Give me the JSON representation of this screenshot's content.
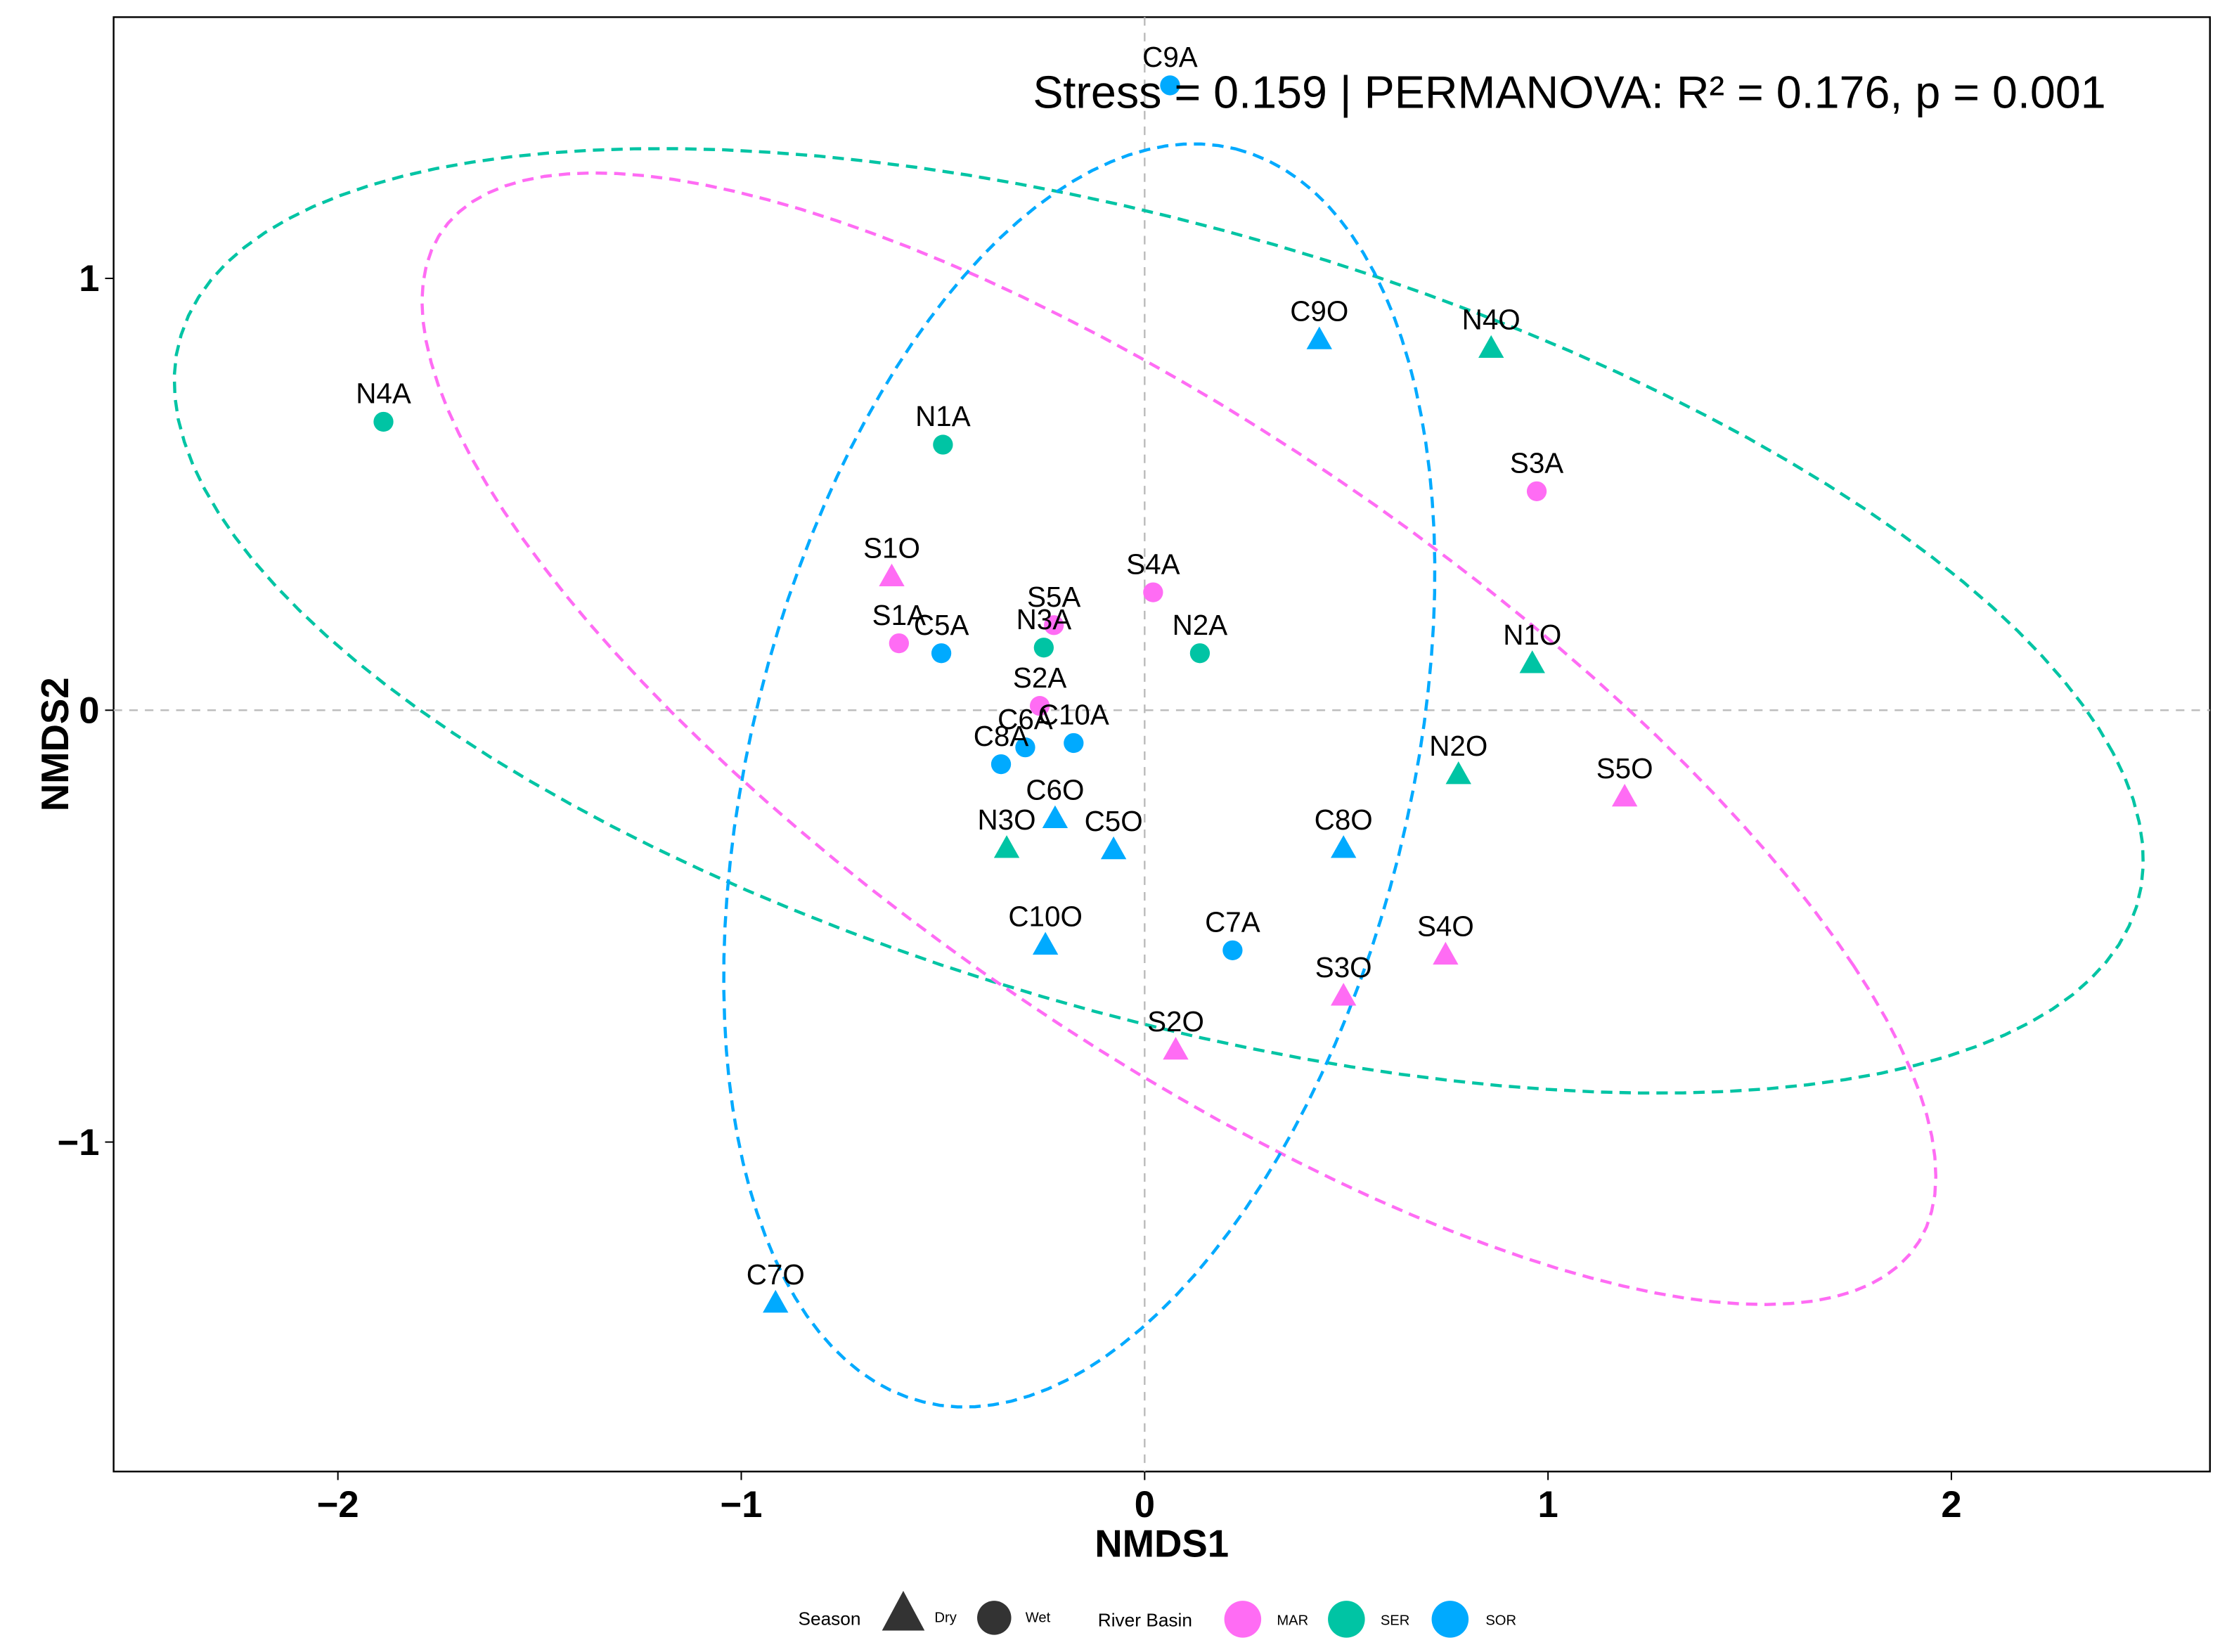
{
  "chart_data": {
    "type": "scatter",
    "title": "Stress = 0.159 | PERMANOVA: R² = 0.176, p = 0.001",
    "xlabel": "NMDS1",
    "ylabel": "NMDS2",
    "xlim": [
      -2.556,
      2.641
    ],
    "ylim": [
      -1.763,
      1.605
    ],
    "xticks": [
      -2,
      -1,
      0,
      1,
      2
    ],
    "xtick_labels": [
      "−2",
      "−1",
      "0",
      "1",
      "2"
    ],
    "yticks": [
      -1,
      0,
      1
    ],
    "ytick_labels": [
      "−1",
      "0",
      "1"
    ],
    "grid": false,
    "reference_lines": {
      "x": 0,
      "y": 0
    },
    "colors": {
      "MAR": "#FF6CF4",
      "SER": "#00C4A4",
      "SOR": "#00AAFF"
    },
    "points": [
      {
        "label": "N4A",
        "x": -1.887,
        "y": 0.668,
        "basin": "SER",
        "season": "Wet"
      },
      {
        "label": "N1A",
        "x": -0.5,
        "y": 0.615,
        "basin": "SER",
        "season": "Wet"
      },
      {
        "label": "S1O",
        "x": -0.627,
        "y": 0.31,
        "basin": "MAR",
        "season": "Dry"
      },
      {
        "label": "S1A",
        "x": -0.609,
        "y": 0.155,
        "basin": "MAR",
        "season": "Wet"
      },
      {
        "label": "C5A",
        "x": -0.504,
        "y": 0.132,
        "basin": "SOR",
        "season": "Wet"
      },
      {
        "label": "S5A",
        "x": -0.225,
        "y": 0.197,
        "basin": "MAR",
        "season": "Wet"
      },
      {
        "label": "N3A",
        "x": -0.25,
        "y": 0.145,
        "basin": "SER",
        "season": "Wet"
      },
      {
        "label": "S4A",
        "x": 0.021,
        "y": 0.273,
        "basin": "MAR",
        "season": "Wet"
      },
      {
        "label": "N2A",
        "x": 0.137,
        "y": 0.132,
        "basin": "SER",
        "season": "Wet"
      },
      {
        "label": "S2A",
        "x": -0.26,
        "y": 0.01,
        "basin": "MAR",
        "season": "Wet"
      },
      {
        "label": "C6A",
        "x": -0.296,
        "y": -0.086,
        "basin": "SOR",
        "season": "Wet"
      },
      {
        "label": "C10A",
        "x": -0.176,
        "y": -0.076,
        "basin": "SOR",
        "season": "Wet"
      },
      {
        "label": "C8A",
        "x": -0.356,
        "y": -0.125,
        "basin": "SOR",
        "season": "Wet"
      },
      {
        "label": "C6O",
        "x": -0.222,
        "y": -0.25,
        "basin": "SOR",
        "season": "Dry"
      },
      {
        "label": "N3O",
        "x": -0.342,
        "y": -0.319,
        "basin": "SER",
        "season": "Dry"
      },
      {
        "label": "C5O",
        "x": -0.077,
        "y": -0.322,
        "basin": "SOR",
        "season": "Dry"
      },
      {
        "label": "C10O",
        "x": -0.246,
        "y": -0.543,
        "basin": "SOR",
        "season": "Dry"
      },
      {
        "label": "C7A",
        "x": 0.218,
        "y": -0.556,
        "basin": "SOR",
        "season": "Wet"
      },
      {
        "label": "S2O",
        "x": 0.077,
        "y": -0.786,
        "basin": "MAR",
        "season": "Dry"
      },
      {
        "label": "S3O",
        "x": 0.493,
        "y": -0.661,
        "basin": "MAR",
        "season": "Dry"
      },
      {
        "label": "S4O",
        "x": 0.746,
        "y": -0.566,
        "basin": "MAR",
        "season": "Dry"
      },
      {
        "label": "C8O",
        "x": 0.493,
        "y": -0.319,
        "basin": "SOR",
        "season": "Dry"
      },
      {
        "label": "N2O",
        "x": 0.778,
        "y": -0.148,
        "basin": "SER",
        "season": "Dry"
      },
      {
        "label": "S5O",
        "x": 1.19,
        "y": -0.2,
        "basin": "MAR",
        "season": "Dry"
      },
      {
        "label": "N1O",
        "x": 0.961,
        "y": 0.109,
        "basin": "SER",
        "season": "Dry"
      },
      {
        "label": "S3A",
        "x": 0.972,
        "y": 0.507,
        "basin": "MAR",
        "season": "Wet"
      },
      {
        "label": "N4O",
        "x": 0.859,
        "y": 0.839,
        "basin": "SER",
        "season": "Dry"
      },
      {
        "label": "C9O",
        "x": 0.433,
        "y": 0.859,
        "basin": "SOR",
        "season": "Dry"
      },
      {
        "label": "C9A",
        "x": 0.063,
        "y": 1.447,
        "basin": "SOR",
        "season": "Wet"
      },
      {
        "label": "C7O",
        "x": -0.915,
        "y": -1.372,
        "basin": "SOR",
        "season": "Dry"
      }
    ],
    "ellipses": [
      {
        "basin": "SER",
        "center": [
          0.035,
          0.207
        ],
        "u": [
          2.366,
          -0.306
        ],
        "v": [
          -0.6,
          1.05
        ]
      },
      {
        "basin": "MAR",
        "center": [
          0.085,
          -0.066
        ],
        "u": [
          1.673,
          -0.526
        ],
        "v": [
          -0.85,
          1.2
        ]
      },
      {
        "basin": "SOR",
        "center": [
          -0.162,
          -0.151
        ],
        "u": [
          0.387,
          1.451
        ],
        "v": [
          0.792,
          -0.184
        ]
      }
    ],
    "legend": {
      "placement": "bottom",
      "season_title": "Season",
      "season_items": [
        {
          "label": "Dry",
          "shape": "triangle"
        },
        {
          "label": "Wet",
          "shape": "circle"
        }
      ],
      "basin_title": "River Basin",
      "basin_items": [
        {
          "label": "MAR"
        },
        {
          "label": "SER"
        },
        {
          "label": "SOR"
        }
      ]
    }
  }
}
